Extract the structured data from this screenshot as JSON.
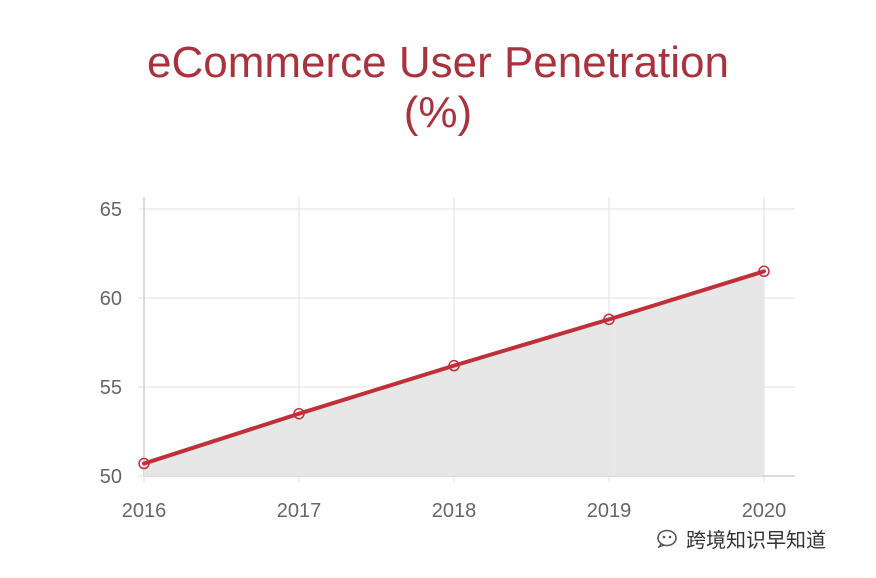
{
  "chart_data": {
    "type": "area",
    "title": "eCommerce User Penetration (%)",
    "title_lines": [
      "eCommerce User Penetration",
      "(%)"
    ],
    "xlabel": "",
    "ylabel": "",
    "categories": [
      "2016",
      "2017",
      "2018",
      "2019",
      "2020"
    ],
    "series": [
      {
        "values": [
          50.7,
          53.5,
          56.2,
          58.8,
          61.5
        ]
      }
    ],
    "ylim": [
      50,
      65
    ],
    "yticks": [
      "50",
      "55",
      "60",
      "65"
    ],
    "grid": true,
    "legend": "none",
    "colors": {
      "line": "#c0303a",
      "fill": "#e4e4e4",
      "grid": "#e2e2e2",
      "axis": "#cfcfcf",
      "tick_text": "#666666",
      "title": "#a8323e"
    }
  },
  "watermark": {
    "text": "跨境知识早知道",
    "icon": "wechat-official-account-icon"
  }
}
